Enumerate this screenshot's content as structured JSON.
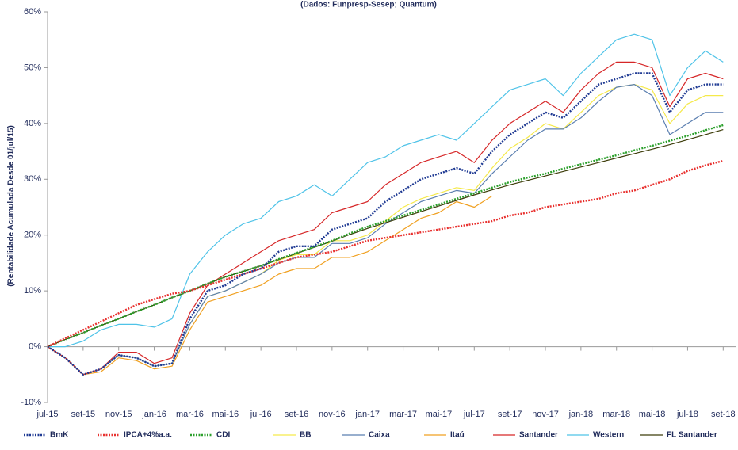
{
  "chart_data": {
    "type": "line",
    "subtitle": "(Dados: Funpresp-Sesep; Quantum)",
    "y_label": "(Rentabilidade Acumulada Desde 01/jul/15)",
    "xlim": [
      0,
      38.7
    ],
    "xticks": [
      {
        "value": 0,
        "label": "jul-15"
      },
      {
        "value": 2,
        "label": "set-15"
      },
      {
        "value": 4,
        "label": "nov-15"
      },
      {
        "value": 6,
        "label": "jan-16"
      },
      {
        "value": 8,
        "label": "mar-16"
      },
      {
        "value": 10,
        "label": "mai-16"
      },
      {
        "value": 12,
        "label": "jul-16"
      },
      {
        "value": 14,
        "label": "set-16"
      },
      {
        "value": 16,
        "label": "nov-16"
      },
      {
        "value": 18,
        "label": "jan-17"
      },
      {
        "value": 20,
        "label": "mar-17"
      },
      {
        "value": 22,
        "label": "mai-17"
      },
      {
        "value": 24,
        "label": "jul-17"
      },
      {
        "value": 26,
        "label": "set-17"
      },
      {
        "value": 28,
        "label": "nov-17"
      },
      {
        "value": 30,
        "label": "jan-18"
      },
      {
        "value": 32,
        "label": "mar-18"
      },
      {
        "value": 34,
        "label": "mai-18"
      },
      {
        "value": 36,
        "label": "jul-18"
      },
      {
        "value": 38,
        "label": "set-18"
      }
    ],
    "ylim": [
      -10,
      60
    ],
    "yticks": [
      {
        "value": -10,
        "label": "-10%"
      },
      {
        "value": 0,
        "label": "0%"
      },
      {
        "value": 10,
        "label": "10%"
      },
      {
        "value": 20,
        "label": "20%"
      },
      {
        "value": 30,
        "label": "30%"
      },
      {
        "value": 40,
        "label": "40%"
      },
      {
        "value": 50,
        "label": "50%"
      },
      {
        "value": 60,
        "label": "60%"
      }
    ],
    "x": [
      0,
      1,
      2,
      3,
      4,
      5,
      6,
      7,
      8,
      9,
      10,
      11,
      12,
      13,
      14,
      15,
      16,
      17,
      18,
      19,
      20,
      21,
      22,
      23,
      24,
      25,
      26,
      27,
      28,
      29,
      30,
      31,
      32,
      33,
      34,
      35,
      36,
      37,
      38
    ],
    "series": [
      {
        "name": "BmK",
        "color": "#1f3a93",
        "style": "dotted",
        "values": [
          0,
          -2,
          -5,
          -4,
          -1.5,
          -2,
          -3.5,
          -3,
          5,
          10,
          11,
          13,
          14,
          17,
          18,
          18,
          21,
          22,
          23,
          26,
          28,
          30,
          31,
          32,
          31,
          35,
          38,
          40,
          42,
          41,
          44,
          47,
          48,
          49,
          49,
          42,
          46,
          47,
          47
        ]
      },
      {
        "name": "IPCA+4%a.a.",
        "color": "#e8312f",
        "style": "dotted",
        "values": [
          0,
          1.5,
          3,
          4.5,
          6,
          7.5,
          8.5,
          9.5,
          10,
          11,
          12,
          13,
          14,
          15,
          16,
          16.5,
          17,
          18,
          19,
          19.5,
          20,
          20.5,
          21,
          21.5,
          22,
          22.5,
          23.5,
          24,
          25,
          25.5,
          26,
          26.5,
          27.5,
          28,
          29,
          30,
          31.5,
          32.5,
          33.3
        ]
      },
      {
        "name": "CDI",
        "color": "#2ca02c",
        "style": "dotted",
        "values": [
          0,
          1.3,
          2.5,
          3.8,
          5,
          6.3,
          7.5,
          8.8,
          10,
          11.3,
          12.5,
          13.5,
          14.5,
          15.7,
          16.8,
          17.9,
          19,
          20.3,
          21.5,
          22.5,
          23.5,
          24.5,
          25.5,
          26.5,
          27.5,
          28.5,
          29.5,
          30.3,
          31,
          31.9,
          32.7,
          33.5,
          34.3,
          35.2,
          36,
          36.9,
          37.8,
          38.8,
          39.7
        ]
      },
      {
        "name": "BB",
        "color": "#f5e94a",
        "style": "solid",
        "values": [
          0,
          -2,
          -5,
          -4,
          -1.5,
          -2,
          -3.5,
          -3,
          4,
          9,
          10,
          11.5,
          13,
          15.5,
          16.5,
          16.5,
          19,
          19,
          20,
          22.5,
          25,
          26.5,
          27.5,
          28.5,
          28,
          32,
          35.5,
          37.5,
          40,
          39,
          42,
          45,
          46.5,
          47,
          46,
          40,
          43.5,
          45,
          45
        ]
      },
      {
        "name": "Caixa",
        "color": "#5b7fb0",
        "style": "solid",
        "values": [
          0,
          -2,
          -5,
          -4,
          -1.5,
          -2,
          -3.5,
          -3,
          4,
          9,
          10,
          11.5,
          13,
          15,
          16,
          16,
          18.5,
          18.5,
          19.5,
          22,
          24,
          26,
          27,
          28,
          27.5,
          31,
          34,
          37,
          39,
          39,
          41,
          44,
          46.5,
          47,
          45,
          38,
          40,
          42,
          42
        ]
      },
      {
        "name": "Itaú",
        "color": "#f0a020",
        "style": "solid",
        "values": [
          0,
          -2,
          -5,
          -4.5,
          -2,
          -2.5,
          -4,
          -3.5,
          3,
          8,
          9,
          10,
          11,
          13,
          14,
          14,
          16,
          16,
          17,
          19,
          21,
          23,
          24,
          26,
          25,
          27,
          null,
          null,
          null,
          null,
          null,
          null,
          null,
          null,
          null,
          null,
          null,
          null,
          null
        ]
      },
      {
        "name": "Santander",
        "color": "#d62728",
        "style": "solid",
        "values": [
          0,
          -2,
          -5,
          -4,
          -1,
          -1,
          -3,
          -2,
          6,
          11,
          13,
          15,
          17,
          19,
          20,
          21,
          24,
          25,
          26,
          29,
          31,
          33,
          34,
          35,
          33,
          37,
          40,
          42,
          44,
          42,
          46,
          49,
          51,
          51,
          50,
          43,
          48,
          49,
          48
        ]
      },
      {
        "name": "Western",
        "color": "#4fc3e8",
        "style": "solid",
        "values": [
          0,
          0,
          1,
          3,
          4,
          4,
          3.5,
          5,
          13,
          17,
          20,
          22,
          23,
          26,
          27,
          29,
          27,
          30,
          33,
          34,
          36,
          37,
          38,
          37,
          40,
          43,
          46,
          47,
          48,
          45,
          49,
          52,
          55,
          56,
          55,
          45,
          50,
          53,
          51
        ]
      },
      {
        "name": "FL Santander",
        "color": "#3d3d0a",
        "style": "solid",
        "values": [
          0,
          1.3,
          2.5,
          3.8,
          5,
          6.3,
          7.5,
          8.8,
          10,
          11.3,
          12.5,
          13.5,
          14.5,
          15.6,
          16.7,
          17.8,
          18.9,
          20.1,
          21.2,
          22.2,
          23.2,
          24.2,
          25.2,
          26.2,
          27.2,
          28.1,
          29,
          29.8,
          30.6,
          31.4,
          32.2,
          33,
          33.8,
          34.6,
          35.4,
          36.2,
          37.1,
          38,
          38.9
        ]
      }
    ]
  }
}
